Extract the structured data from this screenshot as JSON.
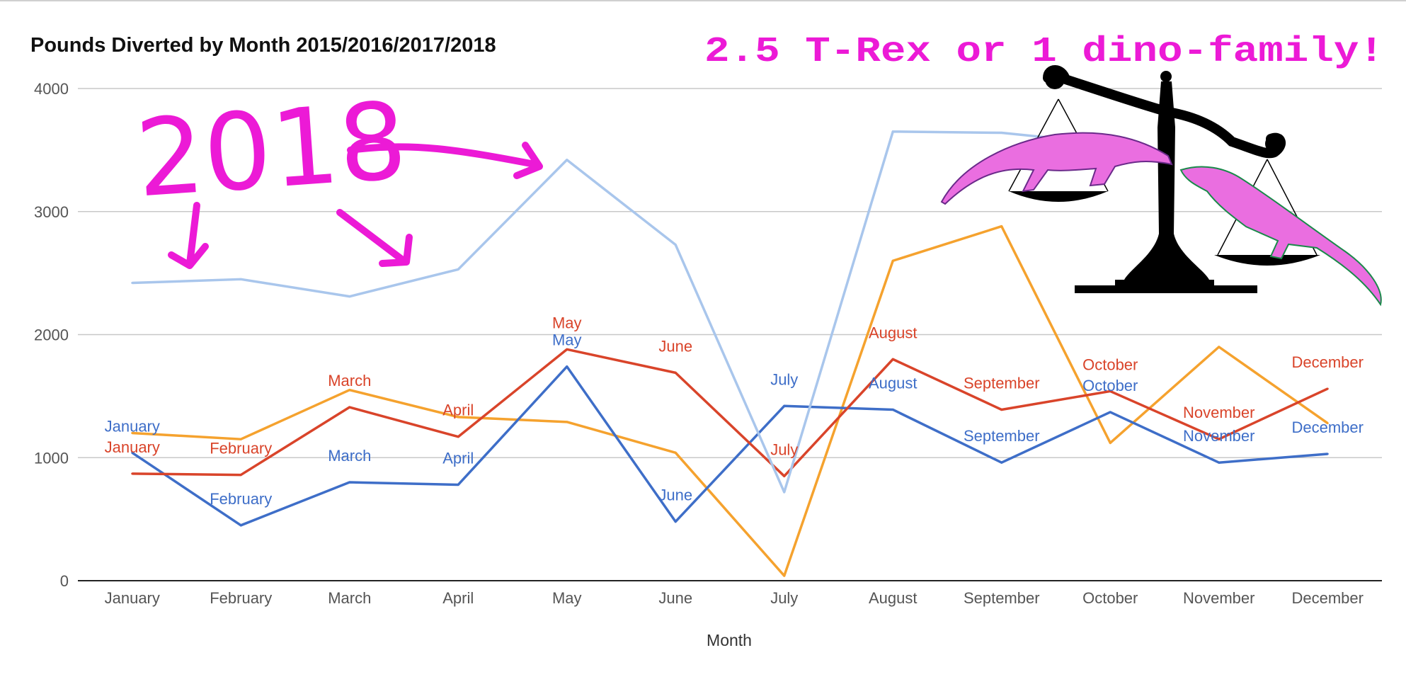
{
  "colors": {
    "series_2015": "#f5a22e",
    "series_2016": "#3e6ec8",
    "series_2017": "#d9442a",
    "series_2018": "#a9c6ec",
    "annotation": "#ec1ad6",
    "grid": "#c8c8c8",
    "axis": "#222222",
    "tick_text": "#555555",
    "scale_icon": "#000000"
  },
  "annotations": {
    "handwritten_year": "2018",
    "headline": "2.5 T-Rex or 1 dino-family!",
    "scale_icon": "balance-scale-with-dinosaur-skeletons"
  },
  "chart_data": {
    "type": "line",
    "title": "Pounds Diverted by Month 2015/2016/2017/2018",
    "xlabel": "Month",
    "ylabel": "",
    "categories": [
      "January",
      "February",
      "March",
      "April",
      "May",
      "June",
      "July",
      "August",
      "September",
      "October",
      "November",
      "December"
    ],
    "ylim": [
      0,
      4000
    ],
    "yticks": [
      0,
      1000,
      2000,
      3000,
      4000
    ],
    "grid": true,
    "legend": "none",
    "series": [
      {
        "values": [
          1200,
          1150,
          1550,
          1330,
          1290,
          1040,
          40,
          2600,
          2880,
          1120,
          1900,
          1280
        ],
        "color_key": "series_2015",
        "data_labels": false
      },
      {
        "values": [
          1040,
          450,
          800,
          780,
          1740,
          480,
          1420,
          1390,
          960,
          1370,
          960,
          1030
        ],
        "color_key": "series_2016",
        "data_labels": true
      },
      {
        "values": [
          870,
          860,
          1410,
          1170,
          1880,
          1690,
          850,
          1800,
          1390,
          1540,
          1150,
          1560
        ],
        "color_key": "series_2017",
        "data_labels": true
      },
      {
        "values": [
          2420,
          2450,
          2310,
          2530,
          3420,
          2730,
          720,
          3650,
          3640,
          3550,
          null,
          null
        ],
        "color_key": "series_2018",
        "data_labels": false
      }
    ]
  }
}
